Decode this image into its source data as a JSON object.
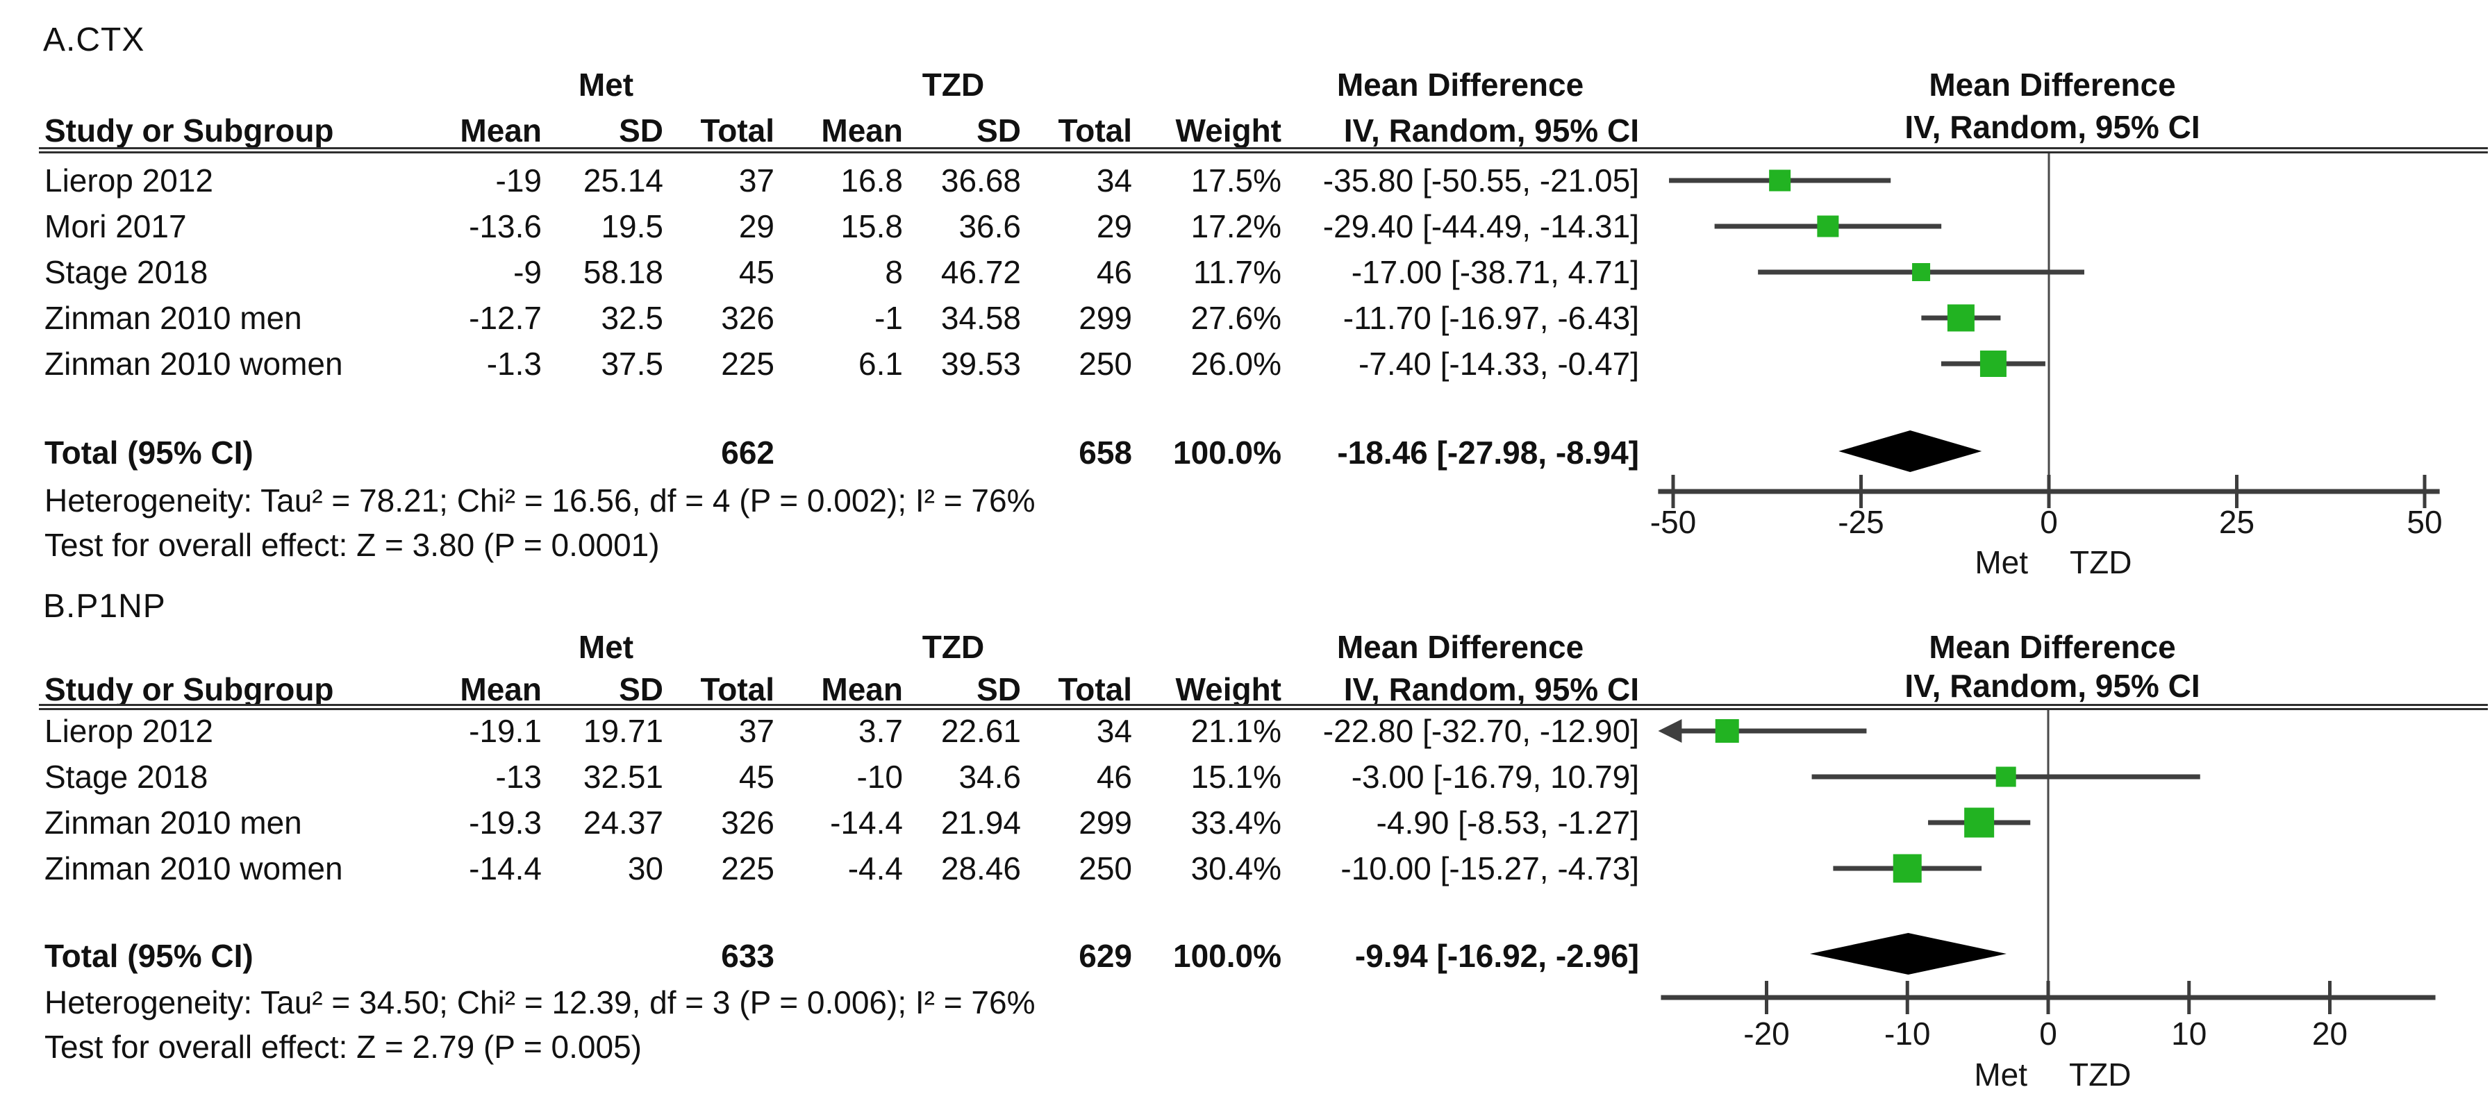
{
  "figure": {
    "background": "#ffffff",
    "square_color": "#22b322",
    "ci_line_color": "#3f3f3f",
    "diamond_color": "#000000",
    "axis_color": "#3d3d3d",
    "zero_line_color": "#4a4a4a",
    "text_color": "#111111"
  },
  "chart_data": [
    {
      "type": "forest",
      "title": "A.CTX",
      "group_labels": [
        "Met",
        "TZD"
      ],
      "effect_label": "Mean Difference",
      "method_label": "IV, Random, 95% CI",
      "columns": [
        "Study or Subgroup",
        "Mean",
        "SD",
        "Total",
        "Mean",
        "SD",
        "Total",
        "Weight"
      ],
      "studies": [
        {
          "name": "Lierop 2012",
          "met_mean": "-19",
          "met_sd": "25.14",
          "met_total": "37",
          "tzd_mean": "16.8",
          "tzd_sd": "36.68",
          "tzd_total": "34",
          "weight": "17.5%",
          "weight_pct": 17.5,
          "md": -35.8,
          "ci_low": -50.55,
          "ci_high": -21.05,
          "ci_text": "-35.80 [-50.55, -21.05]"
        },
        {
          "name": "Mori 2017",
          "met_mean": "-13.6",
          "met_sd": "19.5",
          "met_total": "29",
          "tzd_mean": "15.8",
          "tzd_sd": "36.6",
          "tzd_total": "29",
          "weight": "17.2%",
          "weight_pct": 17.2,
          "md": -29.4,
          "ci_low": -44.49,
          "ci_high": -14.31,
          "ci_text": "-29.40 [-44.49, -14.31]"
        },
        {
          "name": "Stage 2018",
          "met_mean": "-9",
          "met_sd": "58.18",
          "met_total": "45",
          "tzd_mean": "8",
          "tzd_sd": "46.72",
          "tzd_total": "46",
          "weight": "11.7%",
          "weight_pct": 11.7,
          "md": -17.0,
          "ci_low": -38.71,
          "ci_high": 4.71,
          "ci_text": "-17.00 [-38.71, 4.71]"
        },
        {
          "name": "Zinman 2010 men",
          "met_mean": "-12.7",
          "met_sd": "32.5",
          "met_total": "326",
          "tzd_mean": "-1",
          "tzd_sd": "34.58",
          "tzd_total": "299",
          "weight": "27.6%",
          "weight_pct": 27.6,
          "md": -11.7,
          "ci_low": -16.97,
          "ci_high": -6.43,
          "ci_text": "-11.70 [-16.97, -6.43]"
        },
        {
          "name": "Zinman 2010 women",
          "met_mean": "-1.3",
          "met_sd": "37.5",
          "met_total": "225",
          "tzd_mean": "6.1",
          "tzd_sd": "39.53",
          "tzd_total": "250",
          "weight": "26.0%",
          "weight_pct": 26.0,
          "md": -7.4,
          "ci_low": -14.33,
          "ci_high": -0.47,
          "ci_text": "-7.40 [-14.33, -0.47]"
        }
      ],
      "total": {
        "label": "Total (95% CI)",
        "met_total": "662",
        "tzd_total": "658",
        "weight": "100.0%",
        "md": -18.46,
        "ci_low": -27.98,
        "ci_high": -8.94,
        "ci_text": "-18.46 [-27.98, -8.94]"
      },
      "heterogeneity_text": "Heterogeneity: Tau² = 78.21; Chi² = 16.56, df = 4 (P = 0.002); I² = 76%",
      "overall_effect_text": "Test for overall effect: Z = 3.80 (P = 0.0001)",
      "axis_ticks": [
        -50,
        -25,
        0,
        25,
        50
      ],
      "axis_range": [
        -52,
        52
      ],
      "xlabel": "",
      "favours_left": "Met",
      "favours_right": "TZD"
    },
    {
      "type": "forest",
      "title": "B.P1NP",
      "group_labels": [
        "Met",
        "TZD"
      ],
      "effect_label": "Mean Difference",
      "method_label": "IV, Random, 95% CI",
      "columns": [
        "Study or Subgroup",
        "Mean",
        "SD",
        "Total",
        "Mean",
        "SD",
        "Total",
        "Weight"
      ],
      "studies": [
        {
          "name": "Lierop 2012",
          "met_mean": "-19.1",
          "met_sd": "19.71",
          "met_total": "37",
          "tzd_mean": "3.7",
          "tzd_sd": "22.61",
          "tzd_total": "34",
          "weight": "21.1%",
          "weight_pct": 21.1,
          "md": -22.8,
          "ci_low": -32.7,
          "ci_high": -12.9,
          "ci_text": "-22.80 [-32.70, -12.90]"
        },
        {
          "name": "Stage 2018",
          "met_mean": "-13",
          "met_sd": "32.51",
          "met_total": "45",
          "tzd_mean": "-10",
          "tzd_sd": "34.6",
          "tzd_total": "46",
          "weight": "15.1%",
          "weight_pct": 15.1,
          "md": -3.0,
          "ci_low": -16.79,
          "ci_high": 10.79,
          "ci_text": "-3.00 [-16.79, 10.79]"
        },
        {
          "name": "Zinman 2010 men",
          "met_mean": "-19.3",
          "met_sd": "24.37",
          "met_total": "326",
          "tzd_mean": "-14.4",
          "tzd_sd": "21.94",
          "tzd_total": "299",
          "weight": "33.4%",
          "weight_pct": 33.4,
          "md": -4.9,
          "ci_low": -8.53,
          "ci_high": -1.27,
          "ci_text": "-4.90 [-8.53, -1.27]"
        },
        {
          "name": "Zinman 2010 women",
          "met_mean": "-14.4",
          "met_sd": "30",
          "met_total": "225",
          "tzd_mean": "-4.4",
          "tzd_sd": "28.46",
          "tzd_total": "250",
          "weight": "30.4%",
          "weight_pct": 30.4,
          "md": -10.0,
          "ci_low": -15.27,
          "ci_high": -4.73,
          "ci_text": "-10.00 [-15.27, -4.73]"
        }
      ],
      "total": {
        "label": "Total (95% CI)",
        "met_total": "633",
        "tzd_total": "629",
        "weight": "100.0%",
        "md": -9.94,
        "ci_low": -16.92,
        "ci_high": -2.96,
        "ci_text": "-9.94 [-16.92, -2.96]"
      },
      "heterogeneity_text": "Heterogeneity: Tau² = 34.50; Chi² = 12.39, df = 3 (P = 0.006); I² = 76%",
      "overall_effect_text": "Test for overall effect: Z = 2.79 (P = 0.005)",
      "axis_ticks": [
        -20,
        -10,
        0,
        10,
        20
      ],
      "axis_range": [
        -27.5,
        27.5
      ],
      "xlabel": "",
      "favours_left": "Met",
      "favours_right": "TZD"
    }
  ]
}
